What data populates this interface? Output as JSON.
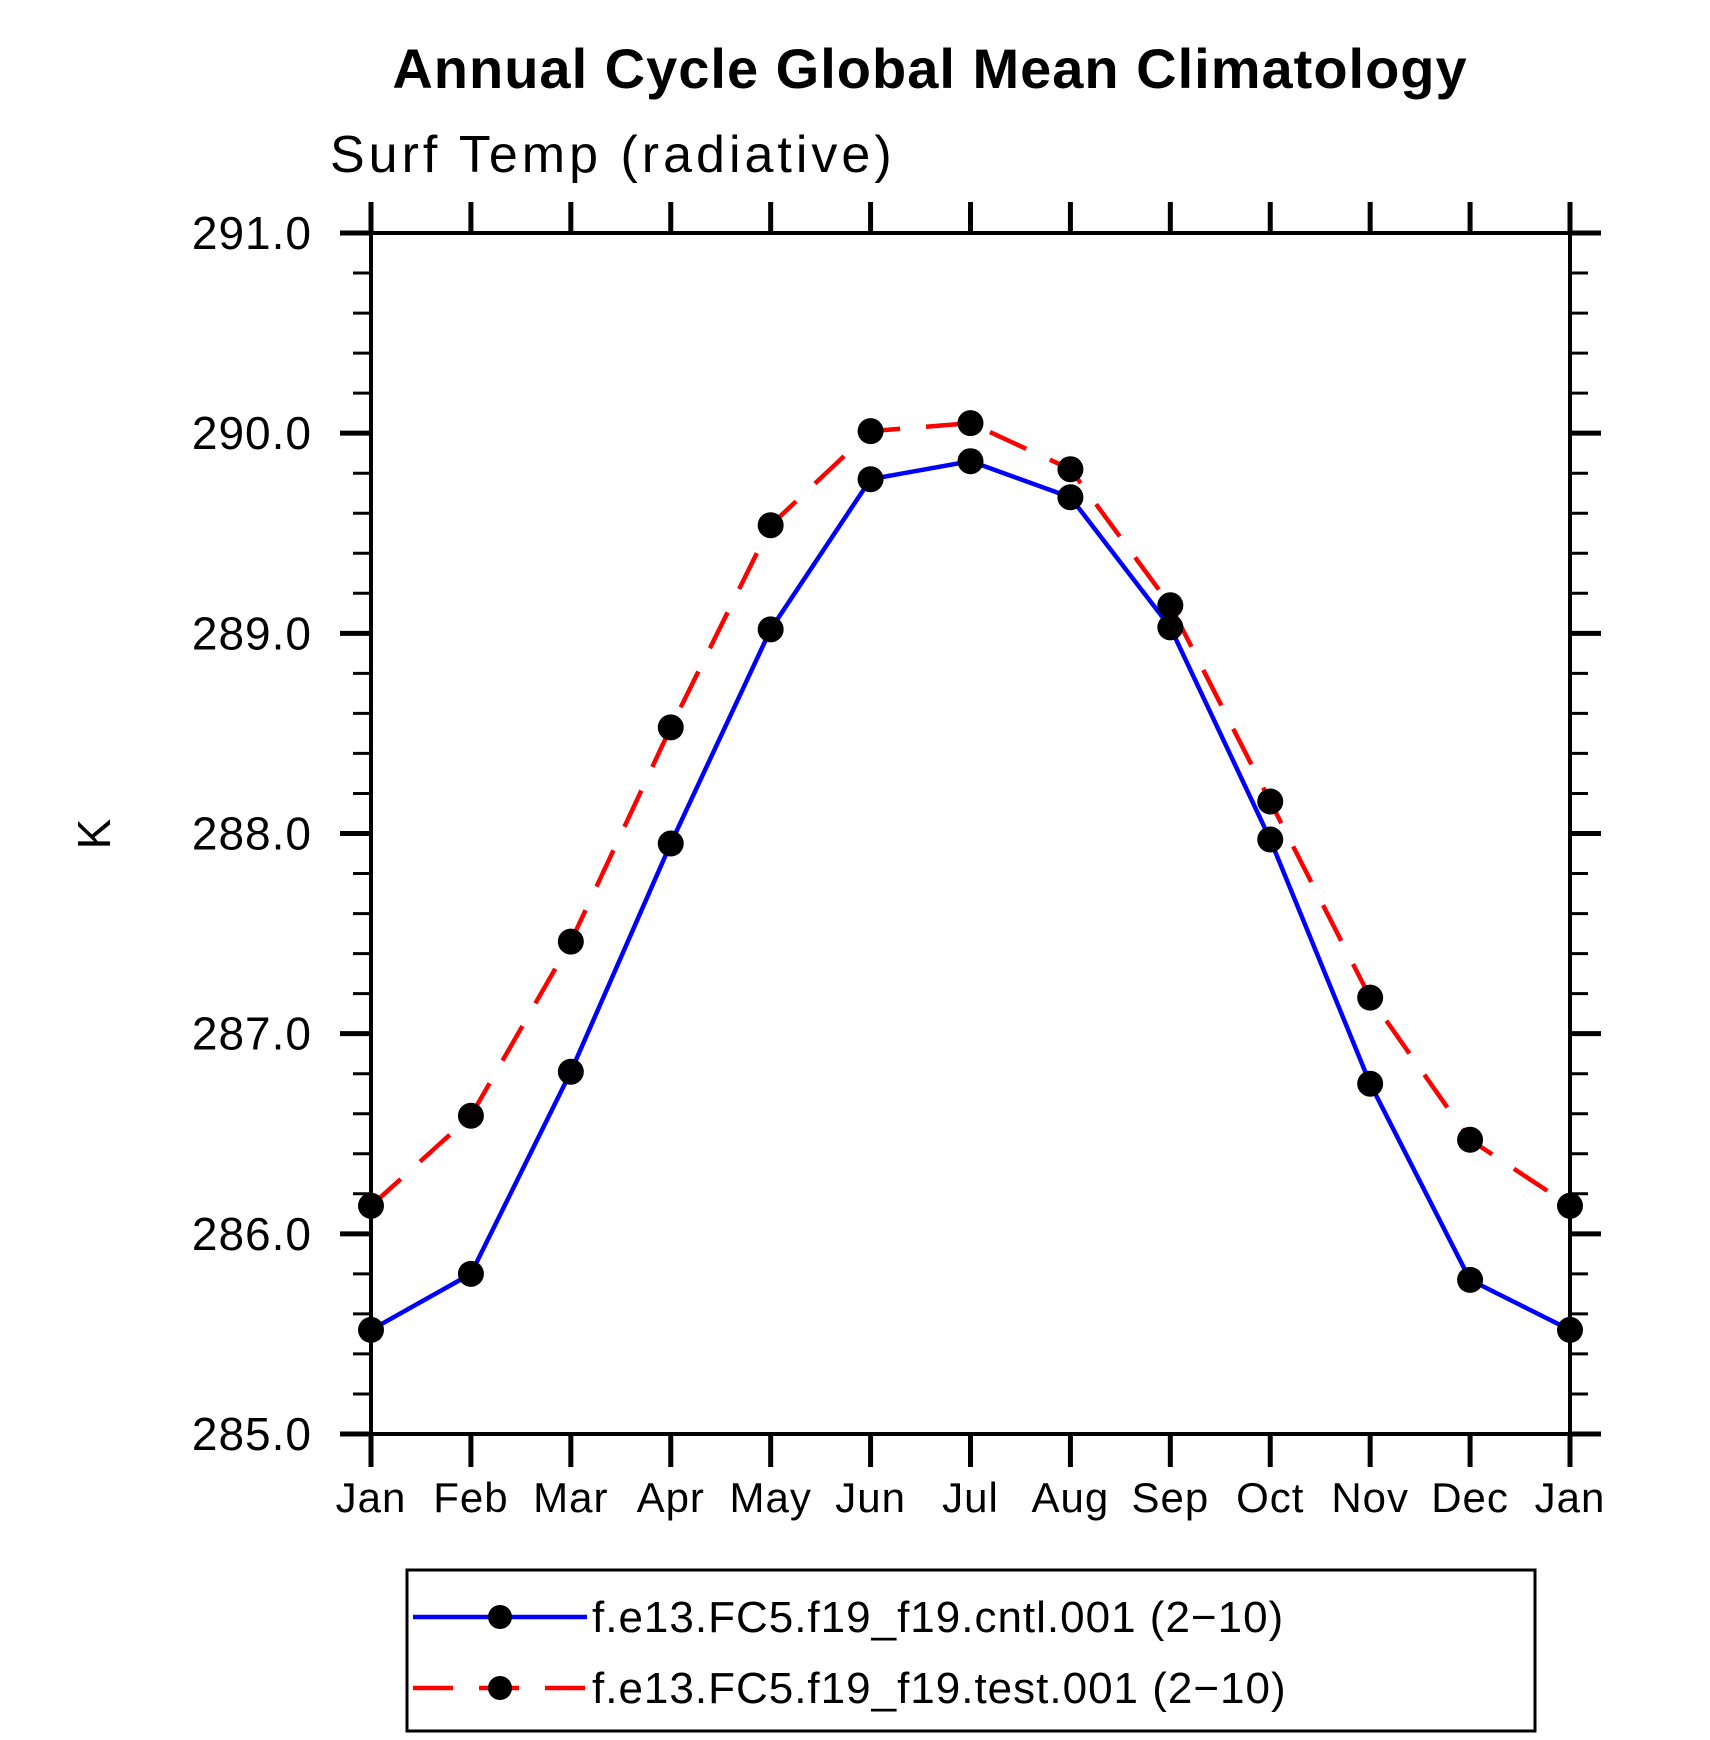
{
  "page": {
    "background": "#ffffff"
  },
  "chart_data": {
    "type": "line",
    "title": "Annual Cycle Global Mean Climatology",
    "subtitle": "Surf Temp (radiative)",
    "ylabel": "K",
    "categories": [
      "Jan",
      "Feb",
      "Mar",
      "Apr",
      "May",
      "Jun",
      "Jul",
      "Aug",
      "Sep",
      "Oct",
      "Nov",
      "Dec",
      "Jan"
    ],
    "series": [
      {
        "name": "f.e13.FC5.f19_f19.cntl.001 (2−10)",
        "color": "#0000ff",
        "style": "solid",
        "marker_color": "#000000",
        "values": [
          285.52,
          285.8,
          286.81,
          287.95,
          289.02,
          289.77,
          289.86,
          289.68,
          289.03,
          287.97,
          286.75,
          285.77,
          285.52
        ]
      },
      {
        "name": "f.e13.FC5.f19_f19.test.001 (2−10)",
        "color": "#ff0000",
        "style": "dashed",
        "marker_color": "#000000",
        "values": [
          286.14,
          286.59,
          287.46,
          288.53,
          289.54,
          290.01,
          290.05,
          289.82,
          289.14,
          288.16,
          287.18,
          286.47,
          286.14
        ]
      }
    ],
    "ylim": [
      285.0,
      291.0
    ],
    "ytick_major": 1.0,
    "ytick_minor": 0.2,
    "ytick_label_format": "one_decimal",
    "grid": false,
    "legend_position": "bottom",
    "axis_color": "#000000",
    "text_color": "#000000"
  }
}
